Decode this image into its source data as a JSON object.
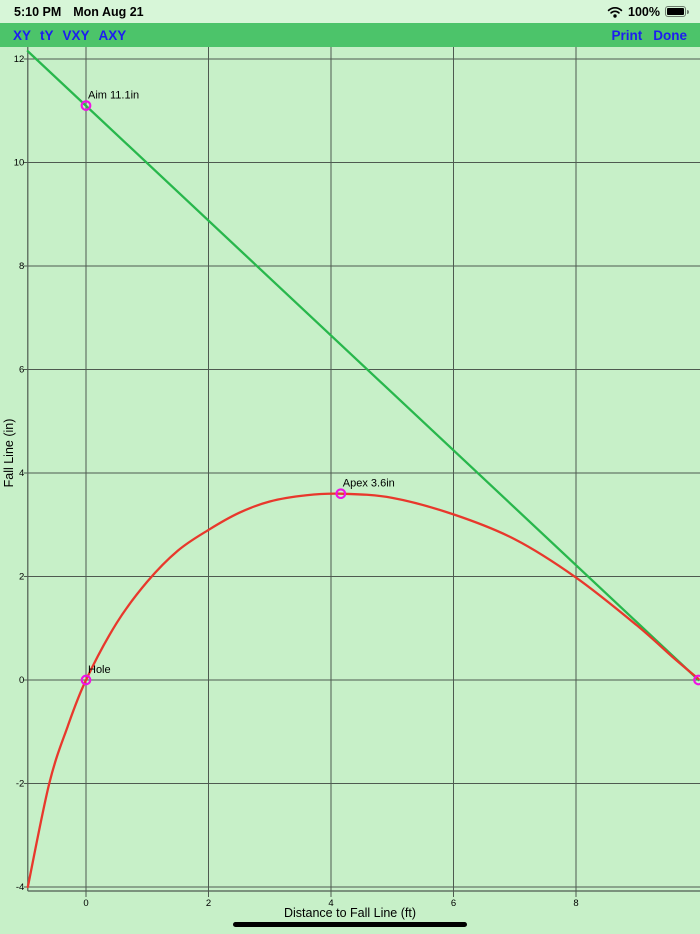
{
  "status_bar": {
    "time": "5:10 PM",
    "date": "Mon Aug 21",
    "battery_percent": "100%"
  },
  "toolbar": {
    "left_buttons": [
      "XY",
      "tY",
      "VXY",
      "AXY"
    ],
    "right_buttons": [
      "Print",
      "Done"
    ],
    "tint_color": "#1d1df0",
    "background": "#4cc46a"
  },
  "chart_data": {
    "type": "line",
    "title": "",
    "xlabel": "Distance to Fall Line (ft)",
    "ylabel": "Fall Line  (in)",
    "xlim": [
      -0.95,
      10.03
    ],
    "ylim": [
      -4.1,
      12.25
    ],
    "x_ticks": [
      0,
      2,
      4,
      6,
      8
    ],
    "y_ticks": [
      -4,
      -2,
      0,
      2,
      4,
      6,
      8,
      10,
      12
    ],
    "grid": true,
    "legend": "none",
    "background": "#c7f0c8",
    "grid_color": "#4e5a50",
    "marker_color": "#ee14e4",
    "series": [
      {
        "name": "aim-line",
        "color": "#28b74c",
        "style": "straight",
        "points": [
          [
            -0.95,
            12.15
          ],
          [
            10.0,
            0.0
          ]
        ]
      },
      {
        "name": "putt-path",
        "color": "#e8382c",
        "style": "smooth",
        "points": [
          [
            -0.95,
            -4.0
          ],
          [
            -0.6,
            -2.0
          ],
          [
            -0.3,
            -0.9
          ],
          [
            0,
            0
          ],
          [
            0.5,
            1.1
          ],
          [
            1,
            1.9
          ],
          [
            1.5,
            2.5
          ],
          [
            2,
            2.9
          ],
          [
            2.5,
            3.23
          ],
          [
            3,
            3.45
          ],
          [
            3.6,
            3.57
          ],
          [
            4.16,
            3.6
          ],
          [
            5,
            3.52
          ],
          [
            6,
            3.2
          ],
          [
            7,
            2.72
          ],
          [
            8,
            1.98
          ],
          [
            9,
            1.05
          ],
          [
            9.6,
            0.42
          ],
          [
            10,
            0.02
          ]
        ]
      }
    ],
    "markers": [
      {
        "name": "aim-point",
        "x": 0,
        "y": 11.1,
        "label": "Aim 11.1in"
      },
      {
        "name": "apex-point",
        "x": 4.16,
        "y": 3.6,
        "label": "Apex 3.6in"
      },
      {
        "name": "hole-point",
        "x": 0,
        "y": 0,
        "label": "Hole"
      },
      {
        "name": "ball-point",
        "x": 10.0,
        "y": 0,
        "label": ""
      }
    ]
  }
}
